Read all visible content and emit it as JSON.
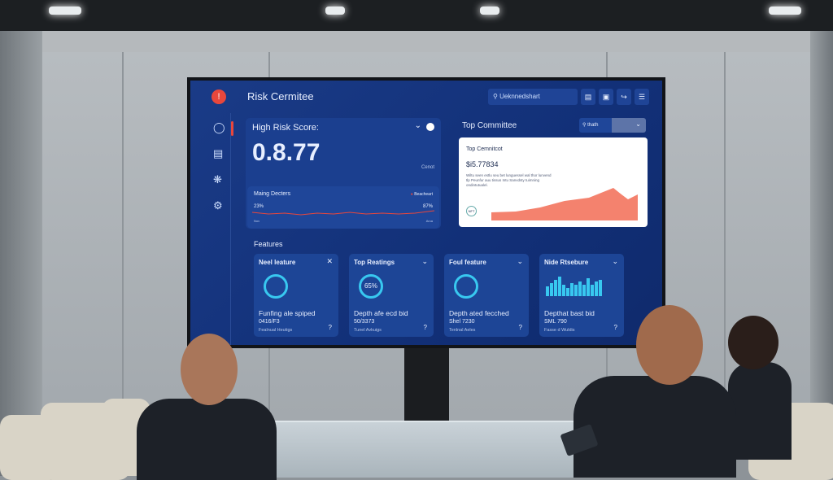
{
  "app": {
    "title": "Risk Cermitee",
    "search_placeholder": "Ueknnedshart",
    "logo_icon": "alert-icon",
    "toolbar_icons": [
      "save-icon",
      "clipboard-icon",
      "share-icon",
      "menu-icon"
    ]
  },
  "sidebar": {
    "icons": [
      "chat-icon",
      "document-icon",
      "network-icon",
      "settings-icon"
    ]
  },
  "risk": {
    "title": "High Risk Score:",
    "value": "0.8.77",
    "link": "Cenot",
    "sub": {
      "title": "Maing Decters",
      "legend": "Beacheart",
      "left": "23%",
      "right": "87%",
      "left_sub": "Nov",
      "right_sub": "Arca"
    }
  },
  "committee": {
    "title": "Top Committee",
    "search": "thath",
    "card_title": "Top Cemnitcot",
    "card_value": "$i5.77834",
    "card_text": "Wiltu seen estlu seu bet lunguessel wal thor lunvend tlp Peunfur auu tissus Intu Sanvdsty tuimning ondintutualel.",
    "badge": "NFT",
    "accent": "#f4826e"
  },
  "features": {
    "title": "Features",
    "cards": [
      {
        "title": "Neel leature",
        "ring": "",
        "text": "Funfing ale spiped",
        "value": "0416/F3",
        "sub": "Fealnual Heutigs",
        "help": "?"
      },
      {
        "title": "Top Reatings",
        "ring": "65%",
        "text": "Depth afe ecd bid",
        "value": "50/3373",
        "sub": "Tunel Avkuigs",
        "help": "?"
      },
      {
        "title": "Foul feature",
        "ring": "",
        "text": "Depth ated fecched",
        "value": "Shel 7230",
        "sub": "Tenlnal Aeles",
        "help": "?"
      },
      {
        "title": "Nide Rtsebure",
        "ring": "",
        "text": "Depthat bast bid",
        "value": "SML 790",
        "sub": "Fasse d Wuldis",
        "help": "?"
      }
    ]
  },
  "colors": {
    "screen_bg": "#123078",
    "card": "#1b3f8f",
    "alert": "#e8473c",
    "cyan": "#38c8f0"
  }
}
